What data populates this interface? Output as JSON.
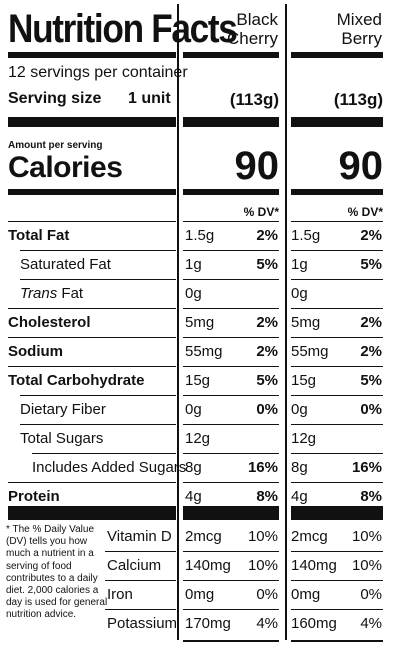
{
  "title": "Nutrition Facts",
  "flavors": [
    {
      "name_line1": "Black",
      "name_line2": "Cherry"
    },
    {
      "name_line1": "Mixed",
      "name_line2": "Berry"
    }
  ],
  "servings_per_container": "12 servings per container",
  "serving_size": {
    "label": "Serving size",
    "unit": "1 unit",
    "weights": [
      "(113g)",
      "(113g)"
    ]
  },
  "amount_per_serving": "Amount per serving",
  "calories": {
    "label": "Calories",
    "values": [
      "90",
      "90"
    ]
  },
  "dv_header": "% DV*",
  "nutrients": [
    {
      "label": "Total Fat",
      "style": "bold",
      "values": [
        {
          "amount": "1.5g",
          "dv": "2%"
        },
        {
          "amount": "1.5g",
          "dv": "2%"
        }
      ]
    },
    {
      "label": "Saturated Fat",
      "style": "ind1",
      "values": [
        {
          "amount": "1g",
          "dv": "5%"
        },
        {
          "amount": "1g",
          "dv": "5%"
        }
      ]
    },
    {
      "label_italic": "Trans",
      "label": " Fat",
      "style": "ind1",
      "values": [
        {
          "amount": "0g",
          "dv": ""
        },
        {
          "amount": "0g",
          "dv": ""
        }
      ]
    },
    {
      "label": "Cholesterol",
      "style": "bold",
      "values": [
        {
          "amount": "5mg",
          "dv": "2%"
        },
        {
          "amount": "5mg",
          "dv": "2%"
        }
      ]
    },
    {
      "label": "Sodium",
      "style": "bold",
      "values": [
        {
          "amount": "55mg",
          "dv": "2%"
        },
        {
          "amount": "55mg",
          "dv": "2%"
        }
      ]
    },
    {
      "label": "Total Carbohydrate",
      "style": "bold",
      "values": [
        {
          "amount": "15g",
          "dv": "5%"
        },
        {
          "amount": "15g",
          "dv": "5%"
        }
      ]
    },
    {
      "label": "Dietary Fiber",
      "style": "ind1",
      "values": [
        {
          "amount": "0g",
          "dv": "0%"
        },
        {
          "amount": "0g",
          "dv": "0%"
        }
      ]
    },
    {
      "label": "Total Sugars",
      "style": "ind1",
      "values": [
        {
          "amount": "12g",
          "dv": ""
        },
        {
          "amount": "12g",
          "dv": ""
        }
      ]
    },
    {
      "label": "Includes Added Sugars",
      "style": "ind2",
      "values": [
        {
          "amount": "8g",
          "dv": "16%"
        },
        {
          "amount": "8g",
          "dv": "16%"
        }
      ]
    },
    {
      "label": "Protein",
      "style": "bold",
      "values": [
        {
          "amount": "4g",
          "dv": "8%"
        },
        {
          "amount": "4g",
          "dv": "8%"
        }
      ]
    }
  ],
  "footnote": "* The % Daily Value (DV) tells you how much a nutrient in a serving of food contributes to a daily diet. 2,000 calories a day is used for general nutrition advice.",
  "vitamins": [
    {
      "label": "Vitamin D",
      "values": [
        {
          "amount": "2mcg",
          "dv": "10%"
        },
        {
          "amount": "2mcg",
          "dv": "10%"
        }
      ]
    },
    {
      "label": "Calcium",
      "values": [
        {
          "amount": "140mg",
          "dv": "10%"
        },
        {
          "amount": "140mg",
          "dv": "10%"
        }
      ]
    },
    {
      "label": "Iron",
      "values": [
        {
          "amount": "0mg",
          "dv": "0%"
        },
        {
          "amount": "0mg",
          "dv": "0%"
        }
      ]
    },
    {
      "label": "Potassium",
      "values": [
        {
          "amount": "170mg",
          "dv": "4%"
        },
        {
          "amount": "160mg",
          "dv": "4%"
        }
      ]
    }
  ]
}
